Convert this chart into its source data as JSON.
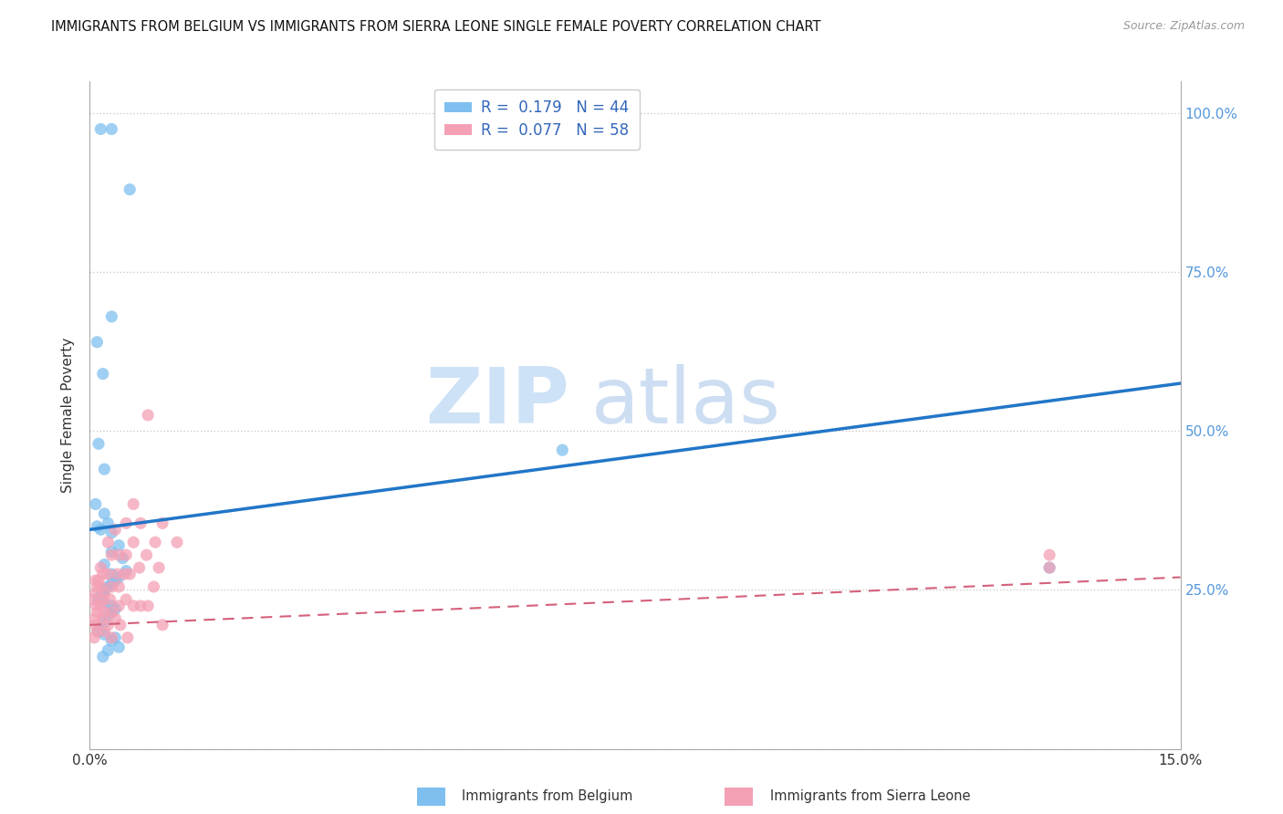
{
  "title": "IMMIGRANTS FROM BELGIUM VS IMMIGRANTS FROM SIERRA LEONE SINGLE FEMALE POVERTY CORRELATION CHART",
  "source": "Source: ZipAtlas.com",
  "ylabel": "Single Female Poverty",
  "xlim": [
    0.0,
    0.15
  ],
  "ylim": [
    0.0,
    1.05
  ],
  "xtick_positions": [
    0.0,
    0.03,
    0.06,
    0.09,
    0.12,
    0.15
  ],
  "xtick_labels": [
    "0.0%",
    "",
    "",
    "",
    "",
    "15.0%"
  ],
  "yticks": [
    0.0,
    0.25,
    0.5,
    0.75,
    1.0
  ],
  "ytick_labels_right": [
    "",
    "25.0%",
    "50.0%",
    "75.0%",
    "100.0%"
  ],
  "watermark_zip": "ZIP",
  "watermark_atlas": "atlas",
  "belgium_color": "#7fbfef",
  "sierraleone_color": "#f4a0b5",
  "belgium_line_color": "#2176c7",
  "sierraleone_line_color": "#d4607a",
  "belgium_R": 0.179,
  "sierraleone_R": 0.077,
  "belgium_N": 44,
  "sierraleone_N": 58,
  "bel_line_x0": 0.0,
  "bel_line_y0": 0.345,
  "bel_line_x1": 0.15,
  "bel_line_y1": 0.575,
  "sl_line_x0": 0.0,
  "sl_line_y0": 0.195,
  "sl_line_x1": 0.15,
  "sl_line_y1": 0.27,
  "belgium_x": [
    0.0015,
    0.003,
    0.0055,
    0.003,
    0.001,
    0.0018,
    0.0012,
    0.002,
    0.0008,
    0.002,
    0.0025,
    0.001,
    0.0015,
    0.003,
    0.004,
    0.003,
    0.0045,
    0.002,
    0.005,
    0.003,
    0.004,
    0.0035,
    0.003,
    0.0025,
    0.002,
    0.0018,
    0.0015,
    0.0012,
    0.002,
    0.003,
    0.0035,
    0.003,
    0.0025,
    0.002,
    0.0015,
    0.0012,
    0.002,
    0.0035,
    0.003,
    0.004,
    0.0025,
    0.0018,
    0.065,
    0.132
  ],
  "belgium_y": [
    0.975,
    0.975,
    0.88,
    0.68,
    0.64,
    0.59,
    0.48,
    0.44,
    0.385,
    0.37,
    0.355,
    0.35,
    0.345,
    0.34,
    0.32,
    0.31,
    0.3,
    0.29,
    0.28,
    0.275,
    0.27,
    0.265,
    0.26,
    0.255,
    0.25,
    0.245,
    0.24,
    0.235,
    0.23,
    0.225,
    0.22,
    0.215,
    0.21,
    0.2,
    0.19,
    0.185,
    0.18,
    0.175,
    0.17,
    0.16,
    0.155,
    0.145,
    0.47,
    0.285
  ],
  "sl_x": [
    0.0008,
    0.001,
    0.0008,
    0.0006,
    0.0009,
    0.001,
    0.0007,
    0.0008,
    0.001,
    0.0006,
    0.0015,
    0.0018,
    0.0012,
    0.0015,
    0.002,
    0.0018,
    0.0015,
    0.002,
    0.0018,
    0.002,
    0.0025,
    0.003,
    0.0025,
    0.003,
    0.0028,
    0.003,
    0.0035,
    0.0025,
    0.003,
    0.0035,
    0.004,
    0.0038,
    0.004,
    0.004,
    0.0042,
    0.005,
    0.005,
    0.0048,
    0.005,
    0.0052,
    0.006,
    0.006,
    0.0055,
    0.006,
    0.007,
    0.0068,
    0.007,
    0.008,
    0.0078,
    0.008,
    0.009,
    0.0088,
    0.01,
    0.0095,
    0.01,
    0.012,
    0.132,
    0.132
  ],
  "sl_y": [
    0.265,
    0.255,
    0.245,
    0.235,
    0.225,
    0.215,
    0.205,
    0.195,
    0.185,
    0.175,
    0.285,
    0.275,
    0.265,
    0.255,
    0.245,
    0.235,
    0.225,
    0.215,
    0.205,
    0.185,
    0.325,
    0.305,
    0.275,
    0.255,
    0.235,
    0.215,
    0.205,
    0.195,
    0.175,
    0.345,
    0.305,
    0.275,
    0.255,
    0.225,
    0.195,
    0.355,
    0.305,
    0.275,
    0.235,
    0.175,
    0.385,
    0.325,
    0.275,
    0.225,
    0.355,
    0.285,
    0.225,
    0.525,
    0.305,
    0.225,
    0.325,
    0.255,
    0.355,
    0.285,
    0.195,
    0.325,
    0.285,
    0.305
  ],
  "background_color": "#ffffff",
  "grid_color": "#cccccc",
  "right_tick_color": "#5599dd",
  "title_fontsize": 10.5,
  "source_fontsize": 9,
  "axis_label_fontsize": 11,
  "tick_fontsize": 11,
  "legend_fontsize": 12
}
